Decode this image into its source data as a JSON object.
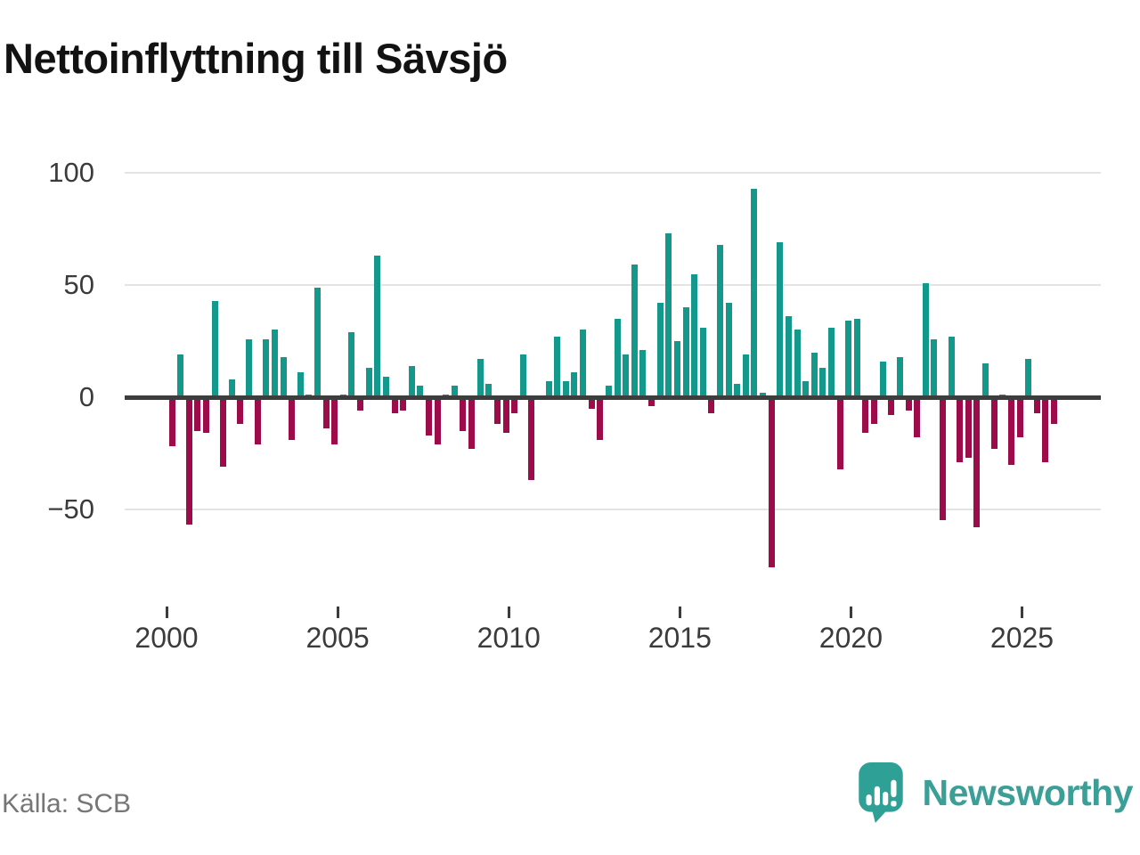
{
  "title": "Nettoinflyttning till Sävsjö",
  "source": "Källa: SCB",
  "brand": {
    "name": "Newsworthy"
  },
  "colors": {
    "positive_bar": "#12998c",
    "negative_bar": "#9e0b4b",
    "axis_line": "#3c3e3e",
    "gridline": "#e3e3e3",
    "tick_label": "#3b3b3b",
    "title_text": "#121212",
    "source_text": "#767676",
    "brand_teal": "#2fa096"
  },
  "chart_data": {
    "type": "bar",
    "title": "Nettoinflyttning till Sävsjö",
    "frequency": "quarterly",
    "x_start": "2000 Q1",
    "x_end": "2025 Q4",
    "xlabel": "",
    "ylabel": "",
    "ylim": [
      -80,
      107
    ],
    "grid": "horizontal",
    "legend": "none",
    "y_ticks": [
      100,
      50,
      0,
      -50
    ],
    "y_tick_labels": [
      "100",
      "50",
      "0",
      "−50"
    ],
    "x_tick_labels": [
      "2000",
      "2005",
      "2010",
      "2015",
      "2020",
      "2025"
    ],
    "series": [
      {
        "name": "Nettoinflyttning",
        "values": [
          -22,
          19,
          -57,
          -15,
          -16,
          43,
          -31,
          8,
          -12,
          26,
          -21,
          26,
          30,
          18,
          -19,
          11,
          1,
          49,
          -14,
          -21,
          1,
          29,
          -6,
          13,
          63,
          9,
          -7,
          -6,
          14,
          5,
          -17,
          -21,
          1,
          5,
          -15,
          -23,
          17,
          6,
          -12,
          -16,
          -7,
          19,
          -37,
          0,
          7,
          27,
          7,
          11,
          30,
          -5,
          -19,
          5,
          35,
          19,
          59,
          21,
          -4,
          42,
          73,
          25,
          40,
          55,
          31,
          -7,
          68,
          42,
          6,
          19,
          93,
          2,
          -76,
          69,
          36,
          30,
          7,
          20,
          13,
          31,
          -32,
          34,
          35,
          -16,
          -12,
          16,
          -8,
          18,
          -6,
          -18,
          51,
          26,
          -55,
          27,
          -29,
          -27,
          -58,
          15,
          -23,
          1,
          -30,
          -18,
          17,
          -7,
          -29,
          -12
        ]
      }
    ]
  }
}
